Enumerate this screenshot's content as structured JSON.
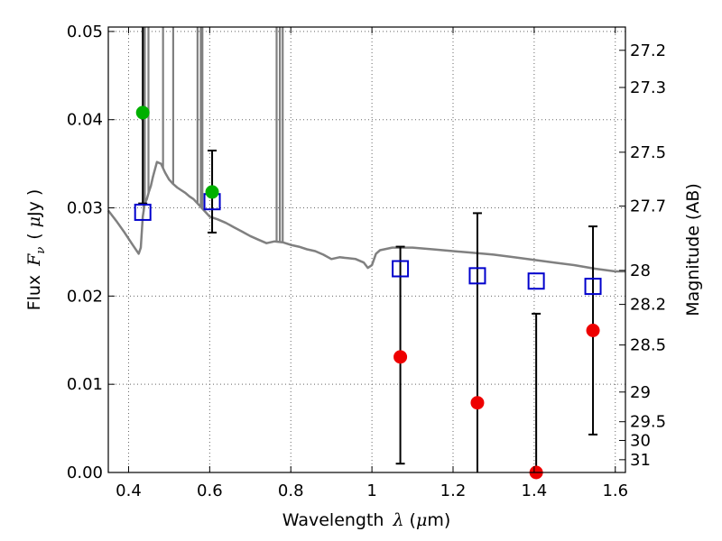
{
  "chart_data": {
    "type": "scatter",
    "title": "",
    "xlabel": "Wavelength",
    "xlabel_symbol": "λ",
    "xlabel_unit_open": "(",
    "xlabel_unit_mu": "μ",
    "xlabel_unit_rest": "m)",
    "ylabel": "Flux",
    "ylabel_symbol": "F",
    "ylabel_symbol_sub": "ν",
    "ylabel_unit_open": "(",
    "ylabel_unit_mu": "μ",
    "ylabel_unit_rest": "Jy )",
    "y2label": "Magnitude (AB)",
    "xlim": [
      0.35,
      1.625
    ],
    "ylim": [
      0.0,
      0.0505
    ],
    "grid": true,
    "x_ticks": [
      0.4,
      0.6,
      0.8,
      1.0,
      1.2,
      1.4,
      1.6
    ],
    "x_tick_labels": [
      "0.4",
      "0.6",
      "0.8",
      "1",
      "1.2",
      "1.4",
      "1.6"
    ],
    "y_ticks": [
      0.0,
      0.01,
      0.02,
      0.03,
      0.04,
      0.05
    ],
    "y_tick_labels": [
      "0.00",
      "0.01",
      "0.02",
      "0.03",
      "0.04",
      "0.05"
    ],
    "mag_ticks": [
      27.2,
      27.3,
      27.5,
      27.7,
      28,
      28.2,
      28.5,
      29,
      29.5,
      30,
      31
    ],
    "mag_tick_labels": [
      "27.2",
      "27.3",
      "27.5",
      "27.7",
      "28",
      "28.2",
      "28.5",
      "29",
      "29.5",
      "30",
      "31"
    ],
    "colors": {
      "model": "#808080",
      "model_photometry": "#0000cc",
      "detections": "#00b000",
      "nondetections": "#ee0000",
      "errorbars": "#000000",
      "grid": "#666666"
    },
    "model_spectrum": {
      "x": [
        0.35,
        0.37,
        0.39,
        0.41,
        0.425,
        0.43,
        0.435,
        0.44,
        0.445,
        0.45,
        0.455,
        0.46,
        0.47,
        0.48,
        0.49,
        0.5,
        0.51,
        0.52,
        0.53,
        0.54,
        0.55,
        0.56,
        0.57,
        0.58,
        0.59,
        0.6,
        0.62,
        0.64,
        0.66,
        0.68,
        0.7,
        0.72,
        0.74,
        0.76,
        0.78,
        0.8,
        0.82,
        0.84,
        0.86,
        0.88,
        0.9,
        0.92,
        0.94,
        0.96,
        0.98,
        0.99,
        1.0,
        1.01,
        1.02,
        1.05,
        1.1,
        1.15,
        1.2,
        1.25,
        1.3,
        1.35,
        1.4,
        1.45,
        1.5,
        1.55,
        1.6,
        1.625
      ],
      "y": [
        0.0297,
        0.0285,
        0.0272,
        0.0258,
        0.0248,
        0.0255,
        0.029,
        0.0305,
        0.031,
        0.0318,
        0.0325,
        0.0335,
        0.0352,
        0.035,
        0.034,
        0.0332,
        0.0327,
        0.0323,
        0.032,
        0.0317,
        0.0313,
        0.031,
        0.0305,
        0.03,
        0.0295,
        0.029,
        0.0287,
        0.0283,
        0.0278,
        0.0273,
        0.0268,
        0.0264,
        0.026,
        0.0262,
        0.0261,
        0.0258,
        0.0256,
        0.0253,
        0.0251,
        0.0247,
        0.0242,
        0.0244,
        0.0243,
        0.0242,
        0.0238,
        0.0232,
        0.0235,
        0.0248,
        0.0252,
        0.0255,
        0.0255,
        0.0253,
        0.0251,
        0.0249,
        0.0247,
        0.0244,
        0.0241,
        0.0238,
        0.0235,
        0.0231,
        0.0228,
        0.0228
      ]
    },
    "emission_lines": [
      {
        "x": 0.437,
        "y": 0.0505
      },
      {
        "x": 0.44,
        "y": 0.0505
      },
      {
        "x": 0.449,
        "y": 0.0505
      },
      {
        "x": 0.485,
        "y": 0.0505
      },
      {
        "x": 0.51,
        "y": 0.0505
      },
      {
        "x": 0.57,
        "y": 0.0505
      },
      {
        "x": 0.578,
        "y": 0.0505
      },
      {
        "x": 0.582,
        "y": 0.0505
      },
      {
        "x": 0.765,
        "y": 0.0505
      },
      {
        "x": 0.773,
        "y": 0.0505
      },
      {
        "x": 0.78,
        "y": 0.0505
      }
    ],
    "series": [
      {
        "kind": "model_photometry",
        "x": [
          0.435,
          0.606,
          1.07,
          1.26,
          1.405,
          1.545
        ],
        "y": [
          0.0295,
          0.0307,
          0.0231,
          0.0223,
          0.0217,
          0.0211
        ]
      },
      {
        "kind": "detections",
        "x": [
          0.435,
          0.606
        ],
        "y": [
          0.0408,
          0.0318
        ]
      },
      {
        "kind": "nondetections",
        "x": [
          1.07,
          1.26,
          1.405,
          1.545
        ],
        "y": [
          0.0131,
          0.0079,
          0.0,
          0.0161
        ]
      }
    ],
    "errorbars": [
      {
        "x": 0.435,
        "low": 0.0305,
        "high": 0.0505
      },
      {
        "x": 0.606,
        "low": 0.0272,
        "high": 0.0365
      },
      {
        "x": 1.07,
        "low": 0.001,
        "high": 0.0256
      },
      {
        "x": 1.26,
        "low": 0.0,
        "high": 0.0294
      },
      {
        "x": 1.405,
        "low": 0.0,
        "high": 0.018
      },
      {
        "x": 1.545,
        "low": 0.0043,
        "high": 0.0279
      }
    ]
  }
}
